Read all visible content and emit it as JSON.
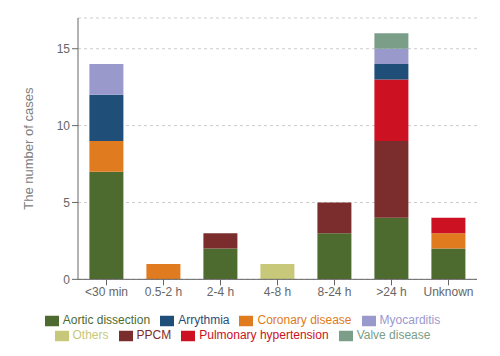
{
  "chart_data": {
    "type": "bar",
    "stacked": true,
    "categories": [
      "<30 min",
      "0.5-2 h",
      "2-4 h",
      "4-8 h",
      "8-24 h",
      ">24 h",
      "Unknown"
    ],
    "series": [
      {
        "name": "Aortic dissection",
        "color": "#4d6b2f",
        "values": [
          7,
          0,
          2,
          0,
          3,
          4,
          2
        ]
      },
      {
        "name": "Coronary disease",
        "color": "#e07b20",
        "values": [
          2,
          1,
          0,
          0,
          0,
          0,
          1
        ]
      },
      {
        "name": "PPCM",
        "color": "#7b2d2d",
        "values": [
          0,
          0,
          1,
          0,
          2,
          5,
          0
        ]
      },
      {
        "name": "Pulmonary hypertension",
        "color": "#cc1122",
        "values": [
          0,
          0,
          0,
          0,
          0,
          4,
          1
        ]
      },
      {
        "name": "Arrythmia",
        "color": "#1f4e79",
        "values": [
          3,
          0,
          0,
          0,
          0,
          1,
          0
        ]
      },
      {
        "name": "Myocarditis",
        "color": "#9999cc",
        "values": [
          2,
          0,
          0,
          0,
          0,
          1,
          0
        ]
      },
      {
        "name": "Valve disease",
        "color": "#7a9e87",
        "values": [
          0,
          0,
          0,
          0,
          0,
          1,
          0
        ]
      },
      {
        "name": "Others",
        "color": "#c8c87a",
        "values": [
          0,
          0,
          0,
          1,
          0,
          0,
          0
        ]
      }
    ],
    "ylabel": "The number of cases",
    "ylim": [
      0,
      17
    ],
    "yticks": [
      0,
      5,
      10,
      15
    ],
    "grid": true,
    "legend": "bottom"
  }
}
